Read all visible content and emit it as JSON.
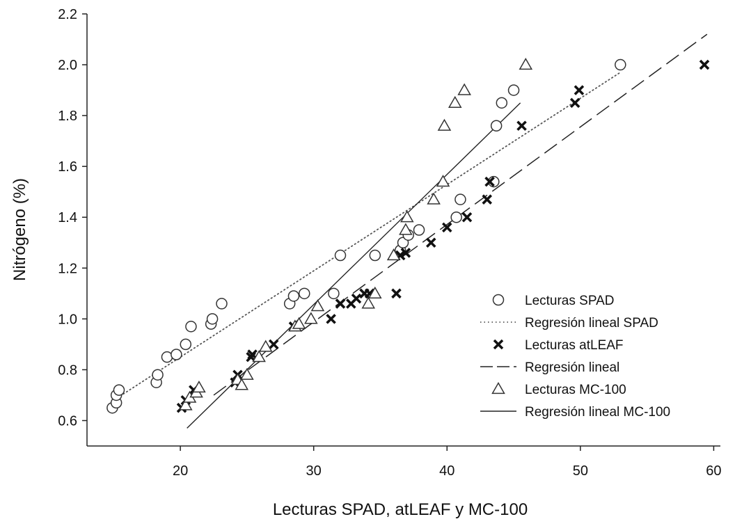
{
  "chart_data": {
    "type": "scatter",
    "title": "",
    "xlabel": "Lecturas SPAD, atLEAF y MC-100",
    "ylabel": "Nitrógeno (%)",
    "xlim": [
      13,
      60.5
    ],
    "ylim": [
      0.5,
      2.2
    ],
    "x_ticks": [
      20,
      30,
      40,
      50,
      60
    ],
    "y_ticks": [
      0.6,
      0.8,
      1.0,
      1.2,
      1.4,
      1.6,
      1.8,
      2.0,
      2.2
    ],
    "y_tick_labels": [
      "0.6",
      "0.8",
      "1.0",
      "1.2",
      "1.4",
      "1.6",
      "1.8",
      "2.0",
      "2.2"
    ],
    "legend_position": "right",
    "series": [
      {
        "name": "Lecturas SPAD",
        "marker": "circle",
        "points": [
          [
            14.9,
            0.65
          ],
          [
            15.2,
            0.67
          ],
          [
            15.2,
            0.7
          ],
          [
            15.4,
            0.72
          ],
          [
            18.2,
            0.75
          ],
          [
            18.3,
            0.78
          ],
          [
            19.0,
            0.85
          ],
          [
            19.7,
            0.86
          ],
          [
            20.4,
            0.9
          ],
          [
            20.8,
            0.97
          ],
          [
            22.3,
            0.98
          ],
          [
            22.4,
            1.0
          ],
          [
            23.1,
            1.06
          ],
          [
            28.2,
            1.06
          ],
          [
            28.5,
            1.09
          ],
          [
            29.3,
            1.1
          ],
          [
            31.5,
            1.1
          ],
          [
            32.0,
            1.25
          ],
          [
            34.6,
            1.25
          ],
          [
            36.5,
            1.27
          ],
          [
            36.7,
            1.3
          ],
          [
            37.1,
            1.33
          ],
          [
            37.9,
            1.35
          ],
          [
            40.7,
            1.4
          ],
          [
            41.0,
            1.47
          ],
          [
            43.5,
            1.54
          ],
          [
            43.7,
            1.76
          ],
          [
            44.1,
            1.85
          ],
          [
            45.0,
            1.9
          ],
          [
            53.0,
            2.0
          ]
        ]
      },
      {
        "name": "Lecturas atLEAF",
        "marker": "x",
        "points": [
          [
            20.1,
            0.65
          ],
          [
            20.4,
            0.68
          ],
          [
            21.0,
            0.72
          ],
          [
            24.1,
            0.75
          ],
          [
            24.3,
            0.78
          ],
          [
            25.3,
            0.85
          ],
          [
            25.4,
            0.86
          ],
          [
            27.0,
            0.9
          ],
          [
            28.5,
            0.97
          ],
          [
            31.3,
            1.0
          ],
          [
            32.0,
            1.06
          ],
          [
            32.8,
            1.06
          ],
          [
            33.2,
            1.08
          ],
          [
            33.8,
            1.1
          ],
          [
            34.2,
            1.1
          ],
          [
            36.2,
            1.1
          ],
          [
            36.5,
            1.25
          ],
          [
            36.9,
            1.26
          ],
          [
            38.8,
            1.3
          ],
          [
            40.0,
            1.36
          ],
          [
            41.5,
            1.4
          ],
          [
            43.0,
            1.47
          ],
          [
            43.2,
            1.54
          ],
          [
            45.6,
            1.76
          ],
          [
            49.6,
            1.85
          ],
          [
            49.9,
            1.9
          ],
          [
            59.3,
            2.0
          ]
        ]
      },
      {
        "name": "Lecturas MC-100",
        "marker": "triangle",
        "points": [
          [
            20.4,
            0.66
          ],
          [
            20.7,
            0.69
          ],
          [
            21.2,
            0.71
          ],
          [
            21.4,
            0.73
          ],
          [
            24.3,
            0.76
          ],
          [
            24.6,
            0.74
          ],
          [
            25.0,
            0.78
          ],
          [
            25.9,
            0.85
          ],
          [
            26.4,
            0.89
          ],
          [
            28.6,
            0.97
          ],
          [
            28.9,
            0.98
          ],
          [
            29.8,
            1.0
          ],
          [
            30.3,
            1.05
          ],
          [
            34.1,
            1.06
          ],
          [
            34.6,
            1.1
          ],
          [
            36.0,
            1.25
          ],
          [
            36.9,
            1.35
          ],
          [
            37.0,
            1.4
          ],
          [
            39.0,
            1.47
          ],
          [
            39.7,
            1.54
          ],
          [
            39.8,
            1.76
          ],
          [
            40.6,
            1.85
          ],
          [
            41.3,
            1.9
          ],
          [
            45.9,
            2.0
          ]
        ]
      }
    ],
    "regressions": [
      {
        "name": "Regresión lineal SPAD",
        "style": "dotted",
        "x": [
          15.0,
          53.0
        ],
        "y": [
          0.68,
          1.97
        ]
      },
      {
        "name": "Regresión lineal",
        "style": "dashed",
        "x": [
          22.5,
          59.5
        ],
        "y": [
          0.7,
          2.12
        ]
      },
      {
        "name": "Regresión lineal MC-100",
        "style": "solid",
        "x": [
          20.5,
          45.5
        ],
        "y": [
          0.57,
          1.85
        ]
      }
    ],
    "legend": [
      {
        "label": "Lecturas SPAD",
        "symbol": "circle"
      },
      {
        "label": "Regresión lineal SPAD",
        "symbol": "dotted-line"
      },
      {
        "label": "Lecturas atLEAF",
        "symbol": "x"
      },
      {
        "label": "Regresión lineal",
        "symbol": "dashed-line"
      },
      {
        "label": "Lecturas MC-100",
        "symbol": "triangle"
      },
      {
        "label": "Regresión lineal MC-100",
        "symbol": "solid-line"
      }
    ]
  }
}
